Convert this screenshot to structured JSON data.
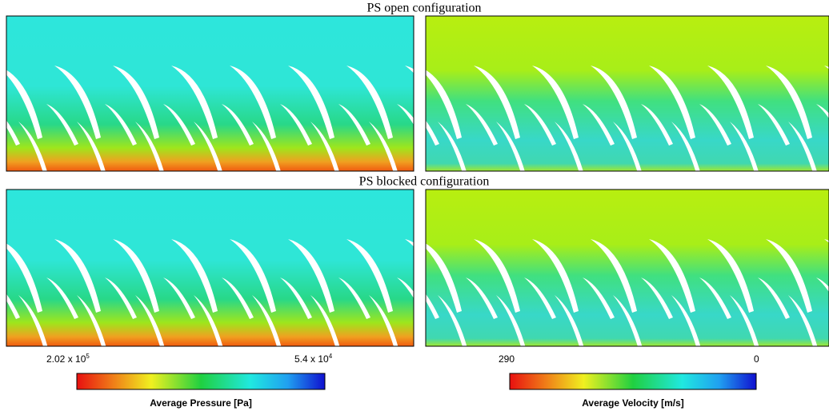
{
  "sections": [
    {
      "title": "PS open configuration"
    },
    {
      "title": "PS blocked configuration"
    }
  ],
  "colorbars": [
    {
      "title": "Average Pressure [Pa]",
      "left": {
        "base": "2.02 x 10",
        "exp": "5"
      },
      "right": {
        "base": "5.4 x 10",
        "exp": "4"
      }
    },
    {
      "title": "Average Velocity [m/s]",
      "left": {
        "base": "290"
      },
      "right": {
        "base": "0"
      }
    }
  ]
}
